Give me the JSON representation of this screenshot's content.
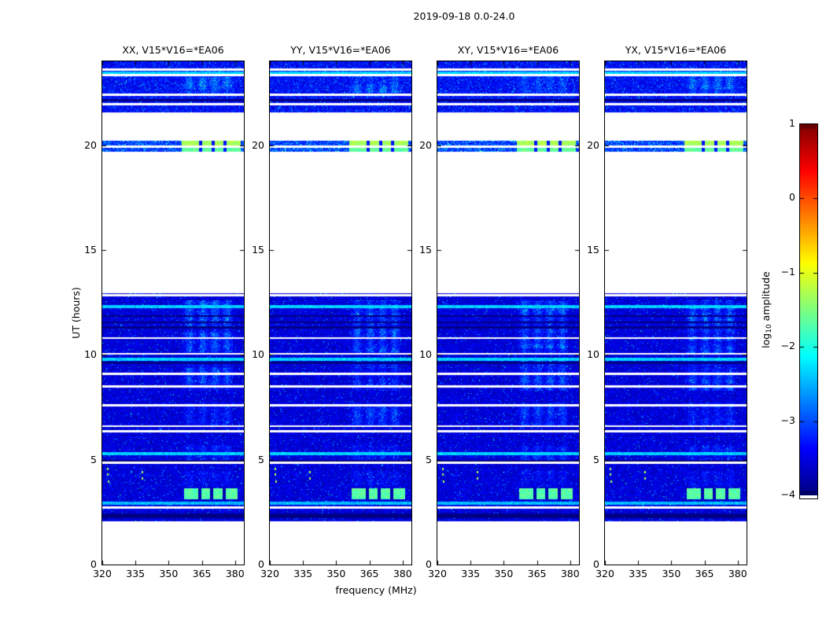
{
  "chart_data": {
    "type": "heatmap",
    "title": "2019-09-18 0.0-24.0",
    "xlabel": "frequency (MHz)",
    "ylabel": "UT (hours)",
    "xlim": [
      320,
      384
    ],
    "ylim": [
      0,
      24
    ],
    "xticks": [
      320,
      335,
      350,
      365,
      380
    ],
    "yticks": [
      0,
      5,
      10,
      15,
      20
    ],
    "colormap": "jet",
    "grid": false,
    "panels": [
      {
        "label": "XX, V15*V16=*EA06",
        "pol": "xx",
        "seed": 101,
        "patch_scale": 1.0
      },
      {
        "label": "YY, V15*V16=*EA06",
        "pol": "yy",
        "seed": 202,
        "patch_scale": 0.95
      },
      {
        "label": "XY, V15*V16=*EA06",
        "pol": "xy",
        "seed": 303,
        "patch_scale": 1.1
      },
      {
        "label": "YX, V15*V16=*EA06",
        "pol": "yx",
        "seed": 404,
        "patch_scale": 1.05
      }
    ],
    "colorbar": {
      "label_prefix": "log",
      "label_sub": "10",
      "label_suffix": " amplitude",
      "vmin": -4,
      "vmax": 1,
      "ticks": [
        {
          "v": 1,
          "label": "1"
        },
        {
          "v": 0,
          "label": "0"
        },
        {
          "v": -1,
          "label": "−1"
        },
        {
          "v": -2,
          "label": "−2"
        },
        {
          "v": -3,
          "label": "−3"
        },
        {
          "v": -4,
          "label": "−4"
        }
      ]
    },
    "bands": [
      {
        "t0": 21.55,
        "t1": 24.0,
        "base": -3.35,
        "noise": 0.35,
        "speckle": 0.035,
        "gaps": [
          23.6,
          23.35,
          22.4,
          21.95
        ],
        "bright": [
          23.45
        ],
        "dark": [
          22.15
        ],
        "patches": [
          {
            "f0": 355,
            "f1": 381,
            "t0": 22.45,
            "t1": 23.3,
            "amp": 0.8
          }
        ],
        "blocks": [],
        "specks": []
      },
      {
        "t0": 19.68,
        "t1": 20.2,
        "base": -3.1,
        "noise": 0.35,
        "speckle": 0.12,
        "gaps": [
          19.94
        ],
        "bright": [],
        "dark": [],
        "patches": [],
        "blocks": [
          {
            "t0": 19.96,
            "t1": 20.2,
            "f0": 356,
            "f1": 382.5,
            "level": -1.3,
            "fgaps": [
              364.5,
              370,
              375.5
            ]
          },
          {
            "t0": 19.68,
            "t1": 19.92,
            "f0": 356,
            "f1": 382.5,
            "level": -1.65,
            "fgaps": [
              364.5,
              370,
              375.5
            ]
          }
        ],
        "specks": []
      },
      {
        "t0": 2.08,
        "t1": 12.95,
        "base": -3.55,
        "noise": 0.32,
        "speckle": 0.02,
        "gaps": [
          12.85,
          10.8,
          10.05,
          9.1,
          8.5,
          7.6,
          6.6,
          6.35,
          4.85,
          2.72
        ],
        "bright": [
          12.3,
          9.8,
          5.3
        ],
        "dark": [
          11.85,
          11.55,
          11.3,
          9.62,
          4.95,
          2.38,
          2.27
        ],
        "patches": [
          {
            "f0": 355,
            "f1": 379,
            "t0": 10.1,
            "t1": 12.6,
            "amp": 1.0
          },
          {
            "f0": 355,
            "f1": 379,
            "t0": 8.3,
            "t1": 9.7,
            "amp": 0.8
          },
          {
            "f0": 355,
            "f1": 379,
            "t0": 6.6,
            "t1": 7.7,
            "amp": 0.7
          },
          {
            "f0": 355,
            "f1": 379,
            "t0": 4.9,
            "t1": 5.7,
            "amp": 0.55
          },
          {
            "f0": 355,
            "f1": 379,
            "t0": 3.7,
            "t1": 4.45,
            "amp": 0.35
          }
        ],
        "blocks": [
          {
            "t0": 3.1,
            "t1": 3.62,
            "f0": 357,
            "f1": 381,
            "level": -1.7,
            "fgaps": [
              364,
              369.5,
              375
            ]
          },
          {
            "t0": 2.84,
            "t1": 3.0,
            "f0": 320,
            "f1": 384,
            "level": -2.45,
            "fgaps": []
          }
        ],
        "specks": [
          {
            "f": 322.5,
            "t": 4.55
          },
          {
            "f": 322.5,
            "t": 4.28
          },
          {
            "f": 338,
            "t": 4.4
          },
          {
            "f": 338,
            "t": 4.12
          },
          {
            "f": 323,
            "t": 3.95
          }
        ]
      }
    ]
  }
}
